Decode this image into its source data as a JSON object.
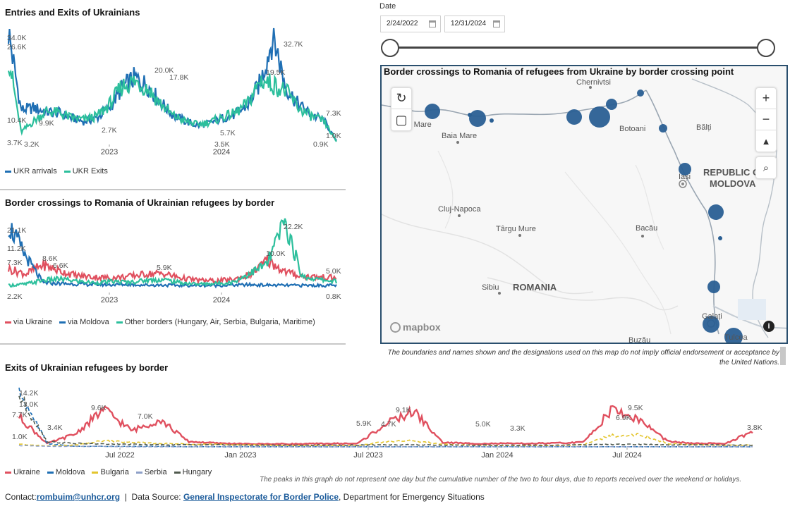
{
  "panel1": {
    "title": "Entries and Exits of Ukrainians",
    "legend": [
      {
        "name": "UKR arrivals",
        "color": "#1f6fb4"
      },
      {
        "name": "UKR Exits",
        "color": "#2cbf9c"
      }
    ]
  },
  "panel2": {
    "title": "Border crossings to Romania of Ukrainian refugees by border",
    "legend": [
      {
        "name": "via Ukraine",
        "color": "#e0505f"
      },
      {
        "name": "via Moldova",
        "color": "#1f6fb4"
      },
      {
        "name": "Other borders (Hungary, Air, Serbia, Bulgaria, Maritime)",
        "color": "#2cbf9c"
      }
    ]
  },
  "panel3": {
    "title": "Exits of Ukrainian refugees by border",
    "legend": [
      {
        "name": "Ukraine",
        "color": "#e0505f"
      },
      {
        "name": "Moldova",
        "color": "#1f6fb4"
      },
      {
        "name": "Bulgaria",
        "color": "#e3c52d"
      },
      {
        "name": "Serbia",
        "color": "#8ea0c8"
      },
      {
        "name": "Hungary",
        "color": "#505a4e"
      }
    ],
    "note": "The peaks in this graph do not represent one day but the cumulative number of the two to four days, due to reports received over the weekend or holidays."
  },
  "date_filter": {
    "label": "Date",
    "start": "2/24/2022",
    "end": "12/31/2024"
  },
  "map": {
    "title": "Border crossings to Romania of refugees from Ukraine by border crossing point",
    "cities": [
      "Chernivtsi",
      "Satu Mare",
      "Baia Mare",
      "Botoani",
      "Bălți",
      "Cluj-Napoca",
      "Târgu Mure",
      "Bacău",
      "Sibiu",
      "Galați",
      "Tulcea",
      "Iași",
      "Buzău"
    ],
    "countries": [
      "ROMANIA",
      "REPUBLIC OF",
      "MOLDOVA"
    ],
    "attribution": "mapbox",
    "bubble_color": "#2a5f93",
    "disclaimer": "The boundaries and names shown and the designations used on this map do not imply official endorsement or acceptance by the United Nations."
  },
  "footer": {
    "contact_label": "Contact:",
    "contact_email": "rombuim@unhcr.org",
    "separator": "|",
    "source_label": "Data Source:",
    "source_link": "General Inspectorate for Border Police",
    "source_rest": ", Department for Emergency Situations"
  },
  "chart_data": [
    {
      "type": "line",
      "title": "Entries and Exits of Ukrainians",
      "x_ticks": [
        "2023",
        "2024"
      ],
      "series": [
        {
          "name": "UKR arrivals",
          "color": "#1f6fb4",
          "values": [
            34000,
            10400,
            11000,
            9800,
            9500,
            8000,
            6900,
            8000,
            11000,
            17000,
            20000,
            17800,
            13000,
            9000,
            7000,
            5700,
            6500,
            8000,
            9000,
            12000,
            19000,
            32700,
            17000,
            12000,
            9000,
            7300,
            1000
          ]
        },
        {
          "name": "UKR Exits",
          "color": "#2cbf9c",
          "values": [
            26600,
            3700,
            7000,
            10000,
            9500,
            8000,
            7500,
            8500,
            12000,
            17500,
            19000,
            17000,
            12500,
            8800,
            7000,
            6000,
            6800,
            8200,
            9500,
            12500,
            19500,
            18000,
            16000,
            11000,
            8500,
            7000,
            900
          ]
        }
      ],
      "annotations": [
        "34.0K",
        "26.6K",
        "10.4K",
        "9.9K",
        "3.7K",
        "3.2K",
        "2.7K",
        "20.0K",
        "17.8K",
        "5.7K",
        "3.5K",
        "19.5K",
        "32.7K",
        "7.3K",
        "1.0K",
        "0.9K"
      ]
    },
    {
      "type": "line",
      "title": "Border crossings to Romania of Ukrainian refugees by border",
      "x_ticks": [
        "2023",
        "2024"
      ],
      "series": [
        {
          "name": "via Ukraine",
          "color": "#e0505f",
          "values": [
            7300,
            5800,
            8600,
            6600,
            5200,
            4800,
            4500,
            5000,
            5800,
            5900,
            4500,
            3800,
            3600,
            4000,
            5500,
            10000,
            6500,
            5000,
            4800,
            4500
          ]
        },
        {
          "name": "via Moldova",
          "color": "#1f6fb4",
          "values": [
            21100,
            11200,
            3000,
            2800,
            2600,
            2500,
            2400,
            2500,
            2300,
            2300,
            2200,
            2200,
            2200,
            2300,
            2400,
            2300,
            2200,
            2200,
            2200,
            2200
          ]
        },
        {
          "name": "Other borders (Hungary, Air, Serbia, Bulgaria, Maritime)",
          "color": "#2cbf9c",
          "values": [
            2200,
            2600,
            3800,
            4200,
            3500,
            3000,
            3400,
            3200,
            3800,
            4000,
            3000,
            2600,
            2800,
            3200,
            6000,
            9000,
            22200,
            5000,
            4000,
            3500
          ]
        }
      ],
      "annotations": [
        "21.1K",
        "11.2K",
        "7.3K",
        "2.2K",
        "8.6K",
        "6.6K",
        "5.9K",
        "10.0K",
        "22.2K",
        "5.0K",
        "0.8K"
      ]
    },
    {
      "type": "line",
      "title": "Exits of Ukrainian refugees by border",
      "x_ticks": [
        "Jul 2022",
        "Jan 2023",
        "Jul 2023",
        "Jan 2024",
        "Jul 2024"
      ],
      "series": [
        {
          "name": "Ukraine",
          "color": "#e0505f",
          "values": [
            7700,
            1000,
            3400,
            9600,
            4200,
            7000,
            1500,
            1100,
            900,
            900,
            900,
            1000,
            1000,
            5900,
            9100,
            1300,
            1000,
            1000,
            1000,
            1100,
            1300,
            9500,
            6900,
            1500,
            1000,
            1000,
            3800
          ]
        },
        {
          "name": "Moldova",
          "color": "#1f6fb4",
          "values": [
            14200,
            1000,
            300,
            300,
            300,
            300,
            200,
            200,
            200,
            200,
            200,
            200,
            200,
            200,
            200,
            200,
            200,
            200,
            200,
            200,
            200,
            200,
            200,
            200,
            200,
            200,
            200
          ]
        },
        {
          "name": "Bulgaria",
          "color": "#e3c52d",
          "values": [
            800,
            400,
            600,
            1700,
            1300,
            1000,
            900,
            800,
            700,
            600,
            500,
            500,
            500,
            1500,
            1700,
            800,
            600,
            500,
            500,
            500,
            700,
            3000,
            3300,
            1000,
            700,
            600,
            600
          ]
        },
        {
          "name": "Serbia",
          "color": "#8ea0c8",
          "values": [
            500,
            300,
            300,
            300,
            200,
            200,
            200,
            200,
            200,
            200,
            200,
            200,
            200,
            200,
            200,
            200,
            200,
            200,
            200,
            200,
            200,
            200,
            200,
            200,
            200,
            200,
            200
          ]
        },
        {
          "name": "Hungary",
          "color": "#505a4e",
          "values": [
            13000,
            1500,
            1000,
            900,
            800,
            700,
            700,
            700,
            600,
            600,
            600,
            600,
            600,
            700,
            700,
            600,
            600,
            600,
            600,
            600,
            700,
            800,
            800,
            700,
            700,
            600,
            600
          ]
        }
      ],
      "annotations": [
        "14.2K",
        "13.0K",
        "7.7K",
        "1.0K",
        "3.4K",
        "9.6K",
        "7.0K",
        "5.9K",
        "4.7K",
        "9.1K",
        "5.0K",
        "3.3K",
        "6.9K",
        "9.5K",
        "3.8K"
      ]
    }
  ]
}
